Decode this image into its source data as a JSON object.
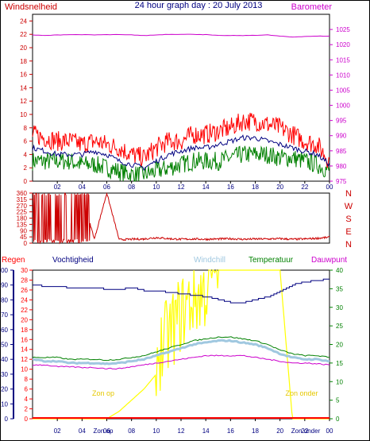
{
  "title": "24 hour graph day : 20 July 2013",
  "x_ticks": [
    "02",
    "04",
    "06",
    "08",
    "10",
    "12",
    "14",
    "16",
    "18",
    "20",
    "22",
    "00"
  ],
  "colors": {
    "wind_label": "#cc0000",
    "baro": "#cc00cc",
    "gust": "#ff0000",
    "avg": "#000080",
    "green": "#008000",
    "dir": "#cc0000",
    "rain": "#ff0000",
    "hum": "#000080",
    "chill": "#a0c8e0",
    "temp": "#008000",
    "dew": "#cc00cc",
    "sun": "#ffff00",
    "sunlabel": "#e6c800"
  },
  "chart_data": [
    {
      "type": "line",
      "title": "24 hour graph day : 20 July 2013",
      "ylabel": "Windsnelheid",
      "y2label": "Barometer",
      "ylim": [
        0,
        25
      ],
      "y_ticks": [
        "0",
        "2",
        "4",
        "6",
        "8",
        "10",
        "12",
        "14",
        "16",
        "18",
        "20",
        "22",
        "24"
      ],
      "y2lim": [
        975,
        1030
      ],
      "y2_ticks": [
        "975",
        "980",
        "985",
        "990",
        "995",
        "1000",
        "1005",
        "1010",
        "1015",
        "1020",
        "1025"
      ],
      "x": [
        0,
        1,
        2,
        3,
        4,
        5,
        6,
        7,
        8,
        9,
        10,
        11,
        12,
        13,
        14,
        15,
        16,
        17,
        18,
        19,
        20,
        21,
        22,
        23,
        24
      ],
      "series": [
        {
          "values": [
            7,
            6.5,
            6,
            6,
            5.5,
            6,
            5.5,
            5,
            4,
            3.5,
            5,
            6,
            6,
            7,
            7,
            7.5,
            8,
            9,
            9,
            8.5,
            8,
            7,
            6,
            5.5,
            3
          ],
          "axis": "right"
        },
        {
          "values": [
            5,
            4.5,
            4,
            4,
            4,
            4.5,
            4,
            3,
            2.5,
            2,
            3,
            4,
            4.5,
            5,
            5,
            5.5,
            6,
            6.5,
            6.5,
            6,
            5.5,
            5,
            4.5,
            4,
            2.5
          ]
        },
        {
          "values": [
            3,
            3,
            3,
            3,
            2.5,
            2.5,
            2,
            1.5,
            1,
            1,
            1.5,
            2,
            2.5,
            3,
            3,
            3,
            3.5,
            4,
            4,
            4,
            3.5,
            3.5,
            3,
            2.5,
            1.5
          ]
        },
        {
          "values": [
            1023.2,
            1023.0,
            1023.2,
            1023.3,
            1023.3,
            1023.2,
            1023.3,
            1023.3,
            1023.2,
            1023.0,
            1023.2,
            1023.4,
            1023.4,
            1023.4,
            1023.3,
            1023.0,
            1023.0,
            1023.0,
            1023.1,
            1023.2,
            1022.8,
            1022.5,
            1022.7,
            1022.8,
            1022.8
          ],
          "axis": "right"
        }
      ]
    },
    {
      "type": "line",
      "y_ticks": [
        "0",
        "45",
        "90",
        "135",
        "180",
        "225",
        "270",
        "315",
        "360"
      ],
      "right_labels": [
        "N",
        "W",
        "S",
        "E",
        "N"
      ],
      "ylim": [
        0,
        360
      ],
      "x": [
        0,
        1,
        2,
        3,
        4,
        5,
        6,
        7,
        8,
        9,
        10,
        11,
        12,
        13,
        14,
        15,
        16,
        17,
        18,
        19,
        20,
        21,
        22,
        23,
        24
      ],
      "series": [
        {
          "values": [
            340,
            30,
            350,
            20,
            340,
            30,
            360,
            25,
            28,
            30,
            40,
            32,
            28,
            30,
            28,
            30,
            32,
            28,
            30,
            30,
            32,
            28,
            30,
            35,
            42
          ]
        }
      ]
    },
    {
      "type": "line",
      "left_labels": [
        "Regen",
        "Vochtigheid"
      ],
      "right_labels": [
        "Windchill",
        "Temperatuur",
        "Dauwpunt"
      ],
      "hum_ylim": [
        0,
        100
      ],
      "hum_ticks": [
        "0",
        "10",
        "20",
        "30",
        "40",
        "50",
        "60",
        "70",
        "80",
        "90",
        "100"
      ],
      "rain_ylim": [
        0,
        30
      ],
      "rain_ticks": [
        "0",
        "2",
        "4",
        "6",
        "8",
        "10",
        "12",
        "14",
        "16",
        "18",
        "20",
        "22",
        "24",
        "26",
        "28",
        "30"
      ],
      "temp_ylim": [
        0,
        40
      ],
      "temp_ticks": [
        "0",
        "5",
        "10",
        "15",
        "20",
        "25",
        "30",
        "35",
        "40"
      ],
      "annotations": [
        "Zon op",
        "Zon onder"
      ],
      "extra_x_labels": [
        "Zon op",
        "Zon onder"
      ],
      "x": [
        0,
        1,
        2,
        3,
        4,
        5,
        6,
        7,
        8,
        9,
        10,
        11,
        12,
        13,
        14,
        15,
        16,
        17,
        18,
        19,
        20,
        21,
        22,
        23,
        24
      ],
      "series": [
        {
          "values": [
            0,
            0,
            0,
            0,
            0,
            0,
            0,
            0,
            0,
            0,
            0,
            0,
            0,
            0,
            0,
            0,
            0,
            0,
            0,
            0,
            0,
            0,
            0,
            0,
            0
          ],
          "axis": "rain"
        },
        {
          "values": [
            90,
            89,
            89,
            88,
            88,
            88,
            87,
            87,
            88,
            86,
            86,
            85,
            84,
            83,
            82,
            80,
            78,
            78,
            80,
            82,
            86,
            90,
            92,
            93,
            94
          ],
          "axis": "hum"
        },
        {
          "values": [
            16,
            15.5,
            15.5,
            15,
            15,
            15,
            14.8,
            15,
            15.5,
            16,
            17,
            18,
            19,
            20,
            20.5,
            21,
            21,
            20.5,
            20,
            19,
            17.5,
            16.5,
            16,
            16,
            15.5
          ],
          "axis": "temp"
        },
        {
          "values": [
            16.5,
            16.5,
            16.5,
            16,
            16,
            16,
            15.8,
            16,
            16.5,
            17,
            18,
            19,
            20,
            21,
            21.5,
            22,
            22,
            21.5,
            21,
            20,
            18.5,
            17.5,
            17,
            17,
            16.5
          ],
          "axis": "temp"
        },
        {
          "values": [
            14.5,
            14.5,
            14,
            14,
            13.8,
            13.8,
            13.5,
            13.5,
            14,
            14.5,
            15,
            15.5,
            16,
            16.5,
            17,
            17,
            17,
            17,
            16.5,
            16,
            15.5,
            15,
            15,
            14.8,
            14.5
          ],
          "axis": "temp"
        },
        {
          "values": [
            0,
            0,
            0,
            0,
            0,
            0,
            0,
            2,
            5,
            8,
            12,
            18,
            24,
            28,
            30,
            40,
            40,
            40,
            40,
            40,
            40,
            0,
            0,
            0,
            0
          ],
          "axis": "temp"
        }
      ]
    }
  ]
}
